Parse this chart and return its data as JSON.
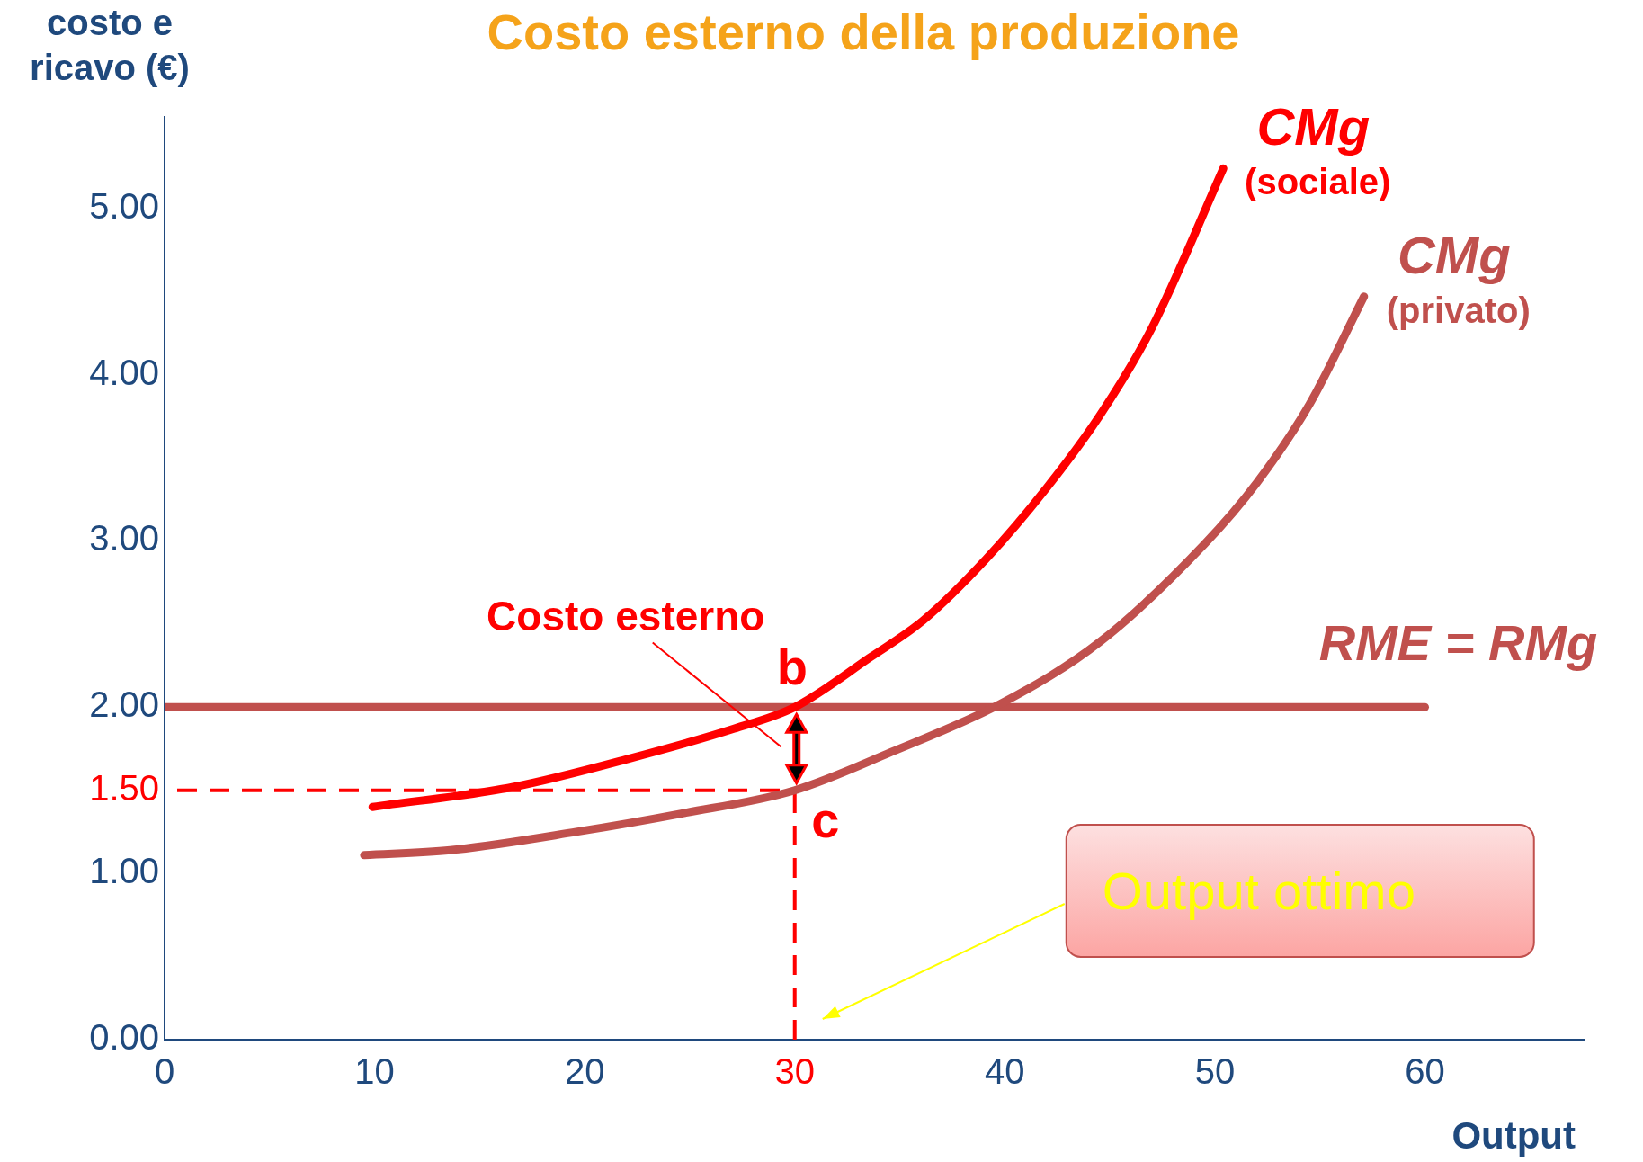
{
  "chart_data": {
    "type": "line",
    "title": "Costo esterno della produzione",
    "xlabel": "Output",
    "ylabel": "costo e\nricavo (€)",
    "xlim": [
      0,
      67.6
    ],
    "ylim": [
      0,
      5.55
    ],
    "xticks": [
      0,
      10,
      20,
      30,
      40,
      50,
      60
    ],
    "yticks": [
      {
        "value": 0,
        "label": "0.00"
      },
      {
        "value": 1,
        "label": "1.00"
      },
      {
        "value": 1.5,
        "label": "1.50"
      },
      {
        "value": 2,
        "label": "2.00"
      },
      {
        "value": 3,
        "label": "3.00"
      },
      {
        "value": 4,
        "label": "4.00"
      },
      {
        "value": 5,
        "label": "5.00"
      }
    ],
    "grid": false,
    "legend": false,
    "marker": "none",
    "series": [
      {
        "name": "CMg\n(sociale)",
        "color": "#ff0000",
        "x": [
          9.9,
          16.6,
          22.1,
          27.1,
          30,
          33.6,
          36.1,
          39.1,
          42.0,
          44.5,
          47.0,
          50.4
        ],
        "values": [
          1.4,
          1.52,
          1.69,
          1.87,
          2.0,
          2.3,
          2.52,
          2.89,
          3.32,
          3.75,
          4.28,
          5.24
        ]
      },
      {
        "name": "CMg\n(privato)",
        "color": "#c0504d",
        "x": [
          9.5,
          13.6,
          19.6,
          24.6,
          30,
          34.6,
          39.8,
          44.5,
          49.5,
          52.0,
          54.5,
          57.1
        ],
        "values": [
          1.11,
          1.14,
          1.25,
          1.36,
          1.5,
          1.73,
          2.02,
          2.39,
          2.98,
          3.35,
          3.82,
          4.47
        ]
      },
      {
        "name": "RME = RMg",
        "color": "#c0504d",
        "x": [
          0,
          60
        ],
        "values": [
          2,
          2
        ]
      }
    ],
    "ref_lines": [
      {
        "axis": "x",
        "value": 30,
        "color": "#ff0000",
        "line_style": "dashed"
      },
      {
        "axis": "y",
        "value": 1.5,
        "color": "#ff0000",
        "line_style": "dashed"
      }
    ],
    "annotations": [
      "Costo esterno",
      {
        "text": "b",
        "x": 30,
        "y": 2
      },
      {
        "text": "c",
        "x": 30,
        "y": 1.5
      },
      "Output ottimo"
    ]
  }
}
